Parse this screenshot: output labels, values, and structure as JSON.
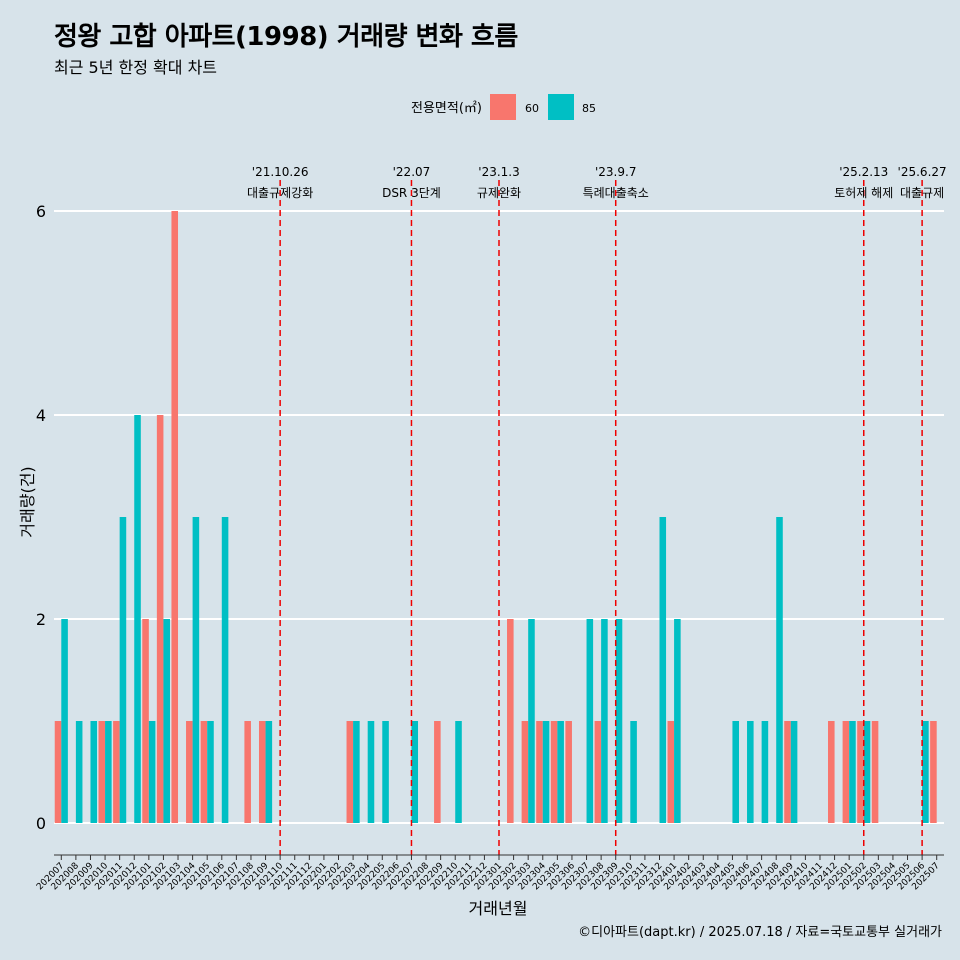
{
  "title": "정왕 고합 아파트(1998) 거래량 변화 흐름",
  "subtitle": "최근 5년 한정 확대 차트",
  "caption": "©디아파트(dapt.kr) / 2025.07.18 / 자료=국토교통부 실거래가",
  "colors": {
    "background": "#d7e3ea",
    "s60": "#f8766d",
    "s85": "#00bfc4",
    "event_line": "#ee0000",
    "grid": "#ffffff"
  },
  "chart_data": {
    "type": "bar",
    "xlabel": "거래년월",
    "ylabel": "거래량(건)",
    "ylim": [
      0,
      6
    ],
    "yticks": [
      0,
      2,
      4,
      6
    ],
    "grid": true,
    "legend_title": "전용면적(㎡)",
    "legend_position": "top",
    "categories": [
      "202007",
      "202008",
      "202009",
      "202010",
      "202011",
      "202012",
      "202101",
      "202102",
      "202103",
      "202104",
      "202105",
      "202106",
      "202107",
      "202108",
      "202109",
      "202110",
      "202111",
      "202112",
      "202201",
      "202202",
      "202203",
      "202204",
      "202205",
      "202206",
      "202207",
      "202208",
      "202209",
      "202210",
      "202211",
      "202212",
      "202301",
      "202302",
      "202303",
      "202304",
      "202305",
      "202306",
      "202307",
      "202308",
      "202309",
      "202310",
      "202311",
      "202312",
      "202401",
      "202402",
      "202403",
      "202404",
      "202405",
      "202406",
      "202407",
      "202408",
      "202409",
      "202410",
      "202411",
      "202412",
      "202501",
      "202502",
      "202503",
      "202504",
      "202505",
      "202506",
      "202507"
    ],
    "series": [
      {
        "name": "60",
        "values": [
          1,
          0,
          0,
          1,
          1,
          0,
          2,
          4,
          6,
          1,
          1,
          0,
          0,
          1,
          1,
          0,
          0,
          0,
          0,
          0,
          1,
          0,
          0,
          0,
          0,
          0,
          1,
          0,
          0,
          0,
          0,
          2,
          1,
          1,
          1,
          1,
          0,
          1,
          0,
          0,
          0,
          0,
          1,
          0,
          0,
          0,
          0,
          0,
          0,
          0,
          1,
          0,
          0,
          1,
          1,
          1,
          1,
          0,
          0,
          0,
          1
        ]
      },
      {
        "name": "85",
        "values": [
          2,
          1,
          1,
          1,
          3,
          4,
          1,
          2,
          0,
          3,
          1,
          3,
          0,
          0,
          1,
          0,
          0,
          0,
          0,
          0,
          1,
          1,
          1,
          0,
          1,
          0,
          0,
          1,
          0,
          0,
          0,
          0,
          2,
          1,
          1,
          0,
          2,
          2,
          2,
          1,
          0,
          3,
          2,
          0,
          0,
          0,
          1,
          1,
          1,
          3,
          1,
          0,
          0,
          0,
          1,
          1,
          0,
          0,
          0,
          1,
          0
        ]
      }
    ],
    "events": [
      {
        "date": "'21.10.26",
        "label": "대출규제강화",
        "at": "202110"
      },
      {
        "date": "'22.07",
        "label": "DSR 3단계",
        "at": "202207"
      },
      {
        "date": "'23.1.3",
        "label": "규제완화",
        "at": "202301"
      },
      {
        "date": "'23.9.7",
        "label": "특례대출축소",
        "at": "202309"
      },
      {
        "date": "'25.2.13",
        "label": "토허제 해제",
        "at": "202502"
      },
      {
        "date": "'25.6.27",
        "label": "대출규제",
        "at": "202506"
      }
    ]
  }
}
